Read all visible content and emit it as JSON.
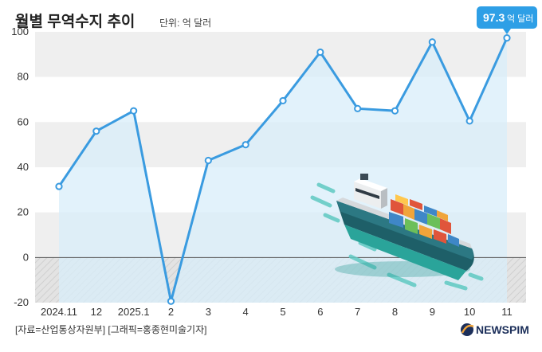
{
  "title": "월별 무역수지 추이",
  "unit_label": "단위: 억 달러",
  "callout": {
    "value": "97.3",
    "unit": "억 달러"
  },
  "footer": "[자료=산업통상자원부] [그래픽=홍종현미술기자]",
  "brand": "NEWSPIM",
  "colors": {
    "line": "#3a9be0",
    "area": "#d8eef9",
    "callout": "#2e9fe6",
    "band": "#efefef"
  },
  "chart_data": {
    "type": "line",
    "categories": [
      "2024.11",
      "12",
      "2025.1",
      "2",
      "3",
      "4",
      "5",
      "6",
      "7",
      "8",
      "9",
      "10",
      "11"
    ],
    "values": [
      31.5,
      56,
      65,
      -19.4,
      43,
      50,
      69.5,
      91,
      66,
      65,
      95.5,
      60.5,
      97.3
    ],
    "ylim": [
      -20,
      100
    ],
    "yticks": [
      "-20",
      "0",
      "20",
      "40",
      "60",
      "80",
      "100"
    ],
    "grid": "alternating horizontal bands",
    "xlabel": "",
    "ylabel": ""
  }
}
